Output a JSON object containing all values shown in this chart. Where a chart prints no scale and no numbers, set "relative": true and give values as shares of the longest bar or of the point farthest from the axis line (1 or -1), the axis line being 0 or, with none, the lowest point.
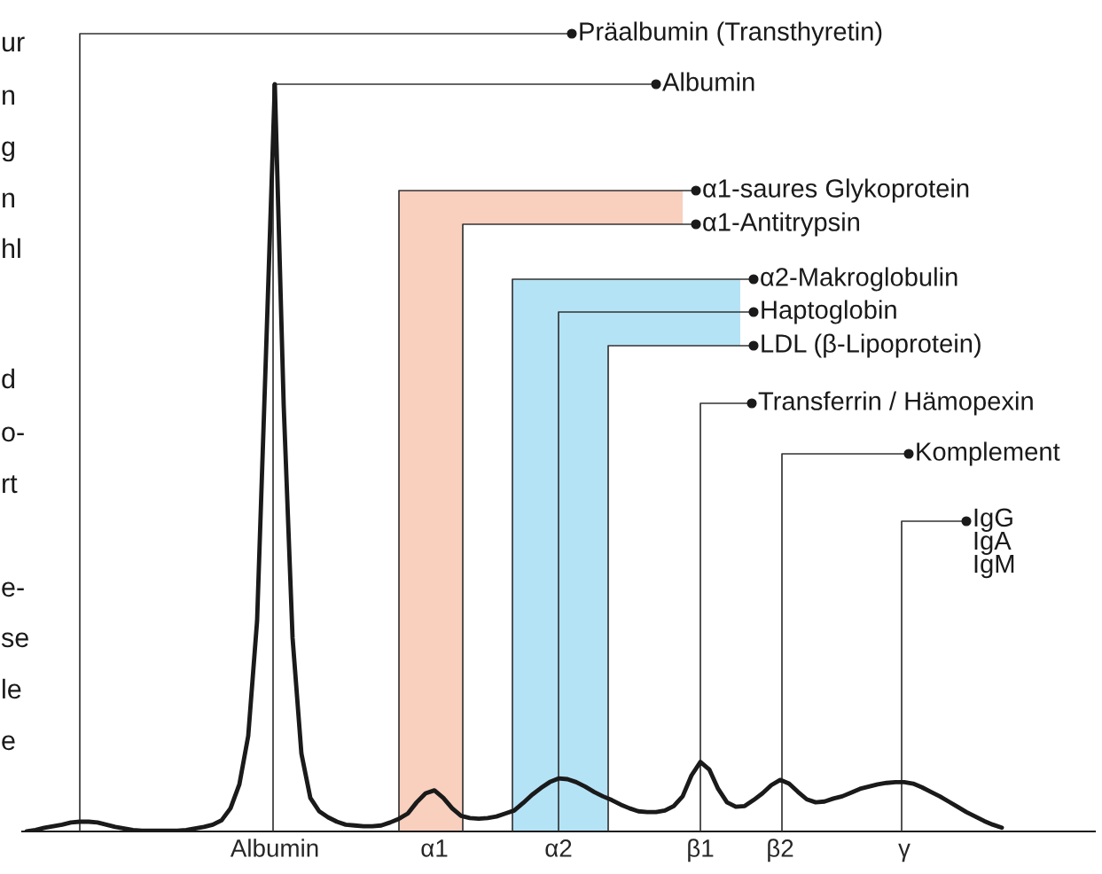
{
  "chart_data": {
    "type": "line",
    "relative": true,
    "categories": [
      null,
      null,
      null,
      null,
      null,
      null,
      null,
      null,
      null,
      null,
      null,
      null,
      null,
      null,
      null,
      null,
      null,
      null,
      null,
      null,
      null,
      null,
      null,
      null,
      null,
      null,
      null,
      null,
      "Albumin",
      null,
      null,
      null,
      null,
      null,
      null,
      null,
      null,
      null,
      null,
      null,
      null,
      null,
      null,
      null,
      null,
      null,
      "α1",
      null,
      null,
      null,
      null,
      null,
      null,
      null,
      null,
      null,
      null,
      null,
      null,
      null,
      "α2",
      null,
      null,
      null,
      null,
      null,
      null,
      null,
      null,
      null,
      null,
      null,
      null,
      null,
      null,
      null,
      "β1",
      null,
      null,
      null,
      null,
      null,
      null,
      null,
      null,
      "β2",
      null,
      null,
      null,
      null,
      null,
      null,
      null,
      null,
      null,
      null,
      null,
      null,
      null,
      "γ",
      null,
      null,
      null,
      null,
      null,
      null,
      null,
      null,
      null,
      null,
      null,
      null,
      null,
      null,
      null,
      null,
      null,
      null,
      null,
      null,
      null
    ],
    "series": [
      {
        "color": "#1a1a1a",
        "values": [
          0,
          0.002,
          0.005,
          0.007,
          0.009,
          0.012,
          0.013,
          0.013,
          0.012,
          0.009,
          0.006,
          0.004,
          0.002,
          0.001,
          0.001,
          0.001,
          0.001,
          0.001,
          0.002,
          0.004,
          0.006,
          0.009,
          0.015,
          0.031,
          0.063,
          0.128,
          0.282,
          0.638,
          1,
          0.57,
          0.259,
          0.104,
          0.045,
          0.027,
          0.019,
          0.013,
          0.009,
          0.008,
          0.007,
          0.007,
          0.008,
          0.012,
          0.017,
          0.024,
          0.039,
          0.051,
          0.055,
          0.045,
          0.031,
          0.021,
          0.018,
          0.017,
          0.018,
          0.02,
          0.024,
          0.028,
          0.038,
          0.049,
          0.058,
          0.066,
          0.071,
          0.07,
          0.066,
          0.06,
          0.053,
          0.047,
          0.042,
          0.036,
          0.031,
          0.027,
          0.026,
          0.026,
          0.028,
          0.034,
          0.047,
          0.075,
          0.093,
          0.083,
          0.057,
          0.039,
          0.033,
          0.034,
          0.042,
          0.051,
          0.062,
          0.069,
          0.064,
          0.053,
          0.043,
          0.039,
          0.04,
          0.044,
          0.047,
          0.052,
          0.057,
          0.06,
          0.063,
          0.065,
          0.066,
          0.066,
          0.064,
          0.059,
          0.053,
          0.047,
          0.04,
          0.033,
          0.026,
          0.02,
          0.014,
          0.009,
          0.005,
          null,
          null,
          null,
          null,
          null,
          null,
          null,
          null,
          null,
          null
        ]
      }
    ],
    "annotations": [
      "Präalbumin (Transthyretin)",
      "Albumin",
      "α1-saures Glykoprotein",
      "α1-Antitrypsin",
      "α2-Makroglobulin",
      "Haptoglobin",
      "LDL (β-Lipoprotein)",
      "Transferrin / Hämopexin",
      "Komplement",
      "IgG\nIgA\nIgM",
      "ur",
      "n",
      "g",
      "n",
      "hl",
      "d",
      "o-",
      "rt",
      "e-",
      "se",
      "le",
      "e"
    ]
  }
}
